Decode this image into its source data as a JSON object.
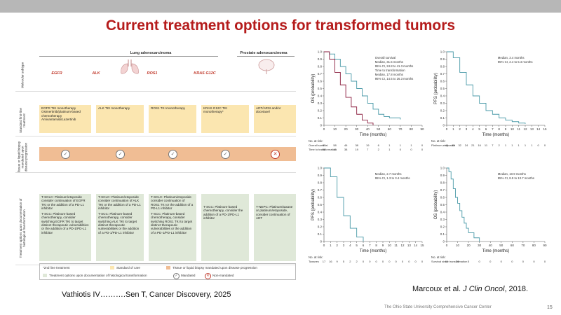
{
  "title": "Current treatment options for transformed tumors",
  "left_figure": {
    "header_lung": "Lung adenocarcinoma",
    "header_prostate": "Prostate adenocarcinoma",
    "row_labels": [
      "Molecular subtype",
      "Standard first-line treatment",
      "Tissue or liquid biopsy mandated upon disease progression",
      "Treatment options upon documentation of histological transformation"
    ],
    "columns": [
      {
        "gene": "EGFR",
        "first_line": [
          "EGFR TKI monotherapy",
          "Osimertinib/platinum-based chemotherapy",
          "Amivantamab/Lazertinib"
        ],
        "transformed": [
          "T-SCLC: Platinum/etoposide consider continuation of EGFR TKI or the addition of a PD-L1 inhibitor",
          "T-SCC: Platinum-based chemotherapy, consider switching EGFR TKI to target distinct therapeutic vulnerabilities or the addition of a PD-1/PD-L1 inhibitor"
        ],
        "mark": "✓"
      },
      {
        "gene": "ALK",
        "first_line": [
          "ALK TKI monotherapy"
        ],
        "transformed": [
          "T-SCLC: Platinum/etoposide consider continuation of ALK TKI or the addition of a PD-L1 inhibitor",
          "T-SCC: Platinum-based chemotherapy, consider switching ALK TKI to target distinct therapeutic vulnerabilities or the addition of a PD-1/PD-L1 inhibitor"
        ],
        "mark": "✓"
      },
      {
        "gene": "ROS1",
        "first_line": [
          "ROS1 TKI monotherapy"
        ],
        "transformed": [
          "T-SCLC: Platinum/etoposide consider continuation of ROS1 TKI or the addition of a PD-L1 inhibitor",
          "T-SCC: Platinum-based chemotherapy, consider switching ROS1 TKI to target distinct therapeutic vulnerabilities or the addition of a PD-1/PD-L1 inhibitor"
        ],
        "mark": "✓"
      },
      {
        "gene": "KRAS G12C",
        "first_line": [
          "KRAS G12C TKI monotherapy*"
        ],
        "transformed": [
          "T-SCC: Platinum-based chemotherapy, consider the addition of a PD-1/PD-L1 inhibitor"
        ],
        "mark": "✓"
      },
      {
        "gene": "",
        "first_line": [
          "ADT/ARSI and/or docetaxel"
        ],
        "transformed": [
          "T-NEPC: Platinum/taxane or platinum/etoposide, consider continuation of ADT"
        ],
        "mark": "✕"
      }
    ],
    "legend": {
      "second_line": "*2nd line treatment",
      "standard": "Standard of care",
      "biopsy": "Tissue or liquid biopsy mandated upon disease progression",
      "treatment": "Treatment options upon documentation of histological transformation",
      "mandated": "Mandated",
      "non_mandated": "Non-mandated"
    },
    "colors": {
      "standard": "#fbe6b0",
      "biopsy": "#f0bd94",
      "treatment": "#dfe8d8",
      "accent": "#c0392b"
    }
  },
  "citation_left": "Vathiotis IV……….Sen T, Cancer Discovery, 2025",
  "citation_right_prefix": "Marcoux et al. ",
  "citation_right_journal": "J Clin Oncol",
  "citation_right_suffix": ", 2018.",
  "footer": "The Ohio State University Comprehensive Cancer Center",
  "page_number": "15",
  "chart_data": [
    {
      "type": "line",
      "ylabel": "OS (probability)",
      "xlabel": "Time (months)",
      "xlim": [
        0,
        90
      ],
      "ylim": [
        0,
        1.0
      ],
      "xticks": [
        0,
        10,
        20,
        30,
        40,
        50,
        60,
        70,
        80,
        90
      ],
      "yticks": [
        "0",
        "0.1",
        "0.2",
        "0.3",
        "0.4",
        "0.5",
        "0.6",
        "0.7",
        "0.8",
        "0.9",
        "1.0"
      ],
      "annotations": [
        "Overall survival",
        "Median, 31.5 months",
        "95% CI, 24.8 to 41.3 months",
        "Time to transformation",
        "Median, 17.8 months",
        "95% CI, 14.5 to 26.3 months"
      ],
      "series": [
        {
          "name": "Overall survival",
          "color": "#4a9aa8",
          "x": [
            0,
            5,
            10,
            15,
            20,
            25,
            30,
            35,
            40,
            45,
            50,
            55,
            60,
            70
          ],
          "y": [
            1.0,
            0.97,
            0.9,
            0.8,
            0.7,
            0.6,
            0.5,
            0.4,
            0.3,
            0.22,
            0.15,
            0.12,
            0.1,
            0.08
          ]
        },
        {
          "name": "Time to transformation",
          "color": "#8b1e3f",
          "x": [
            0,
            5,
            10,
            15,
            20,
            25,
            30,
            35,
            40,
            45
          ],
          "y": [
            1.0,
            0.9,
            0.72,
            0.55,
            0.38,
            0.25,
            0.15,
            0.07,
            0.03,
            0.0
          ]
        }
      ],
      "risk_label": "No. at risk:",
      "risk_rows": [
        {
          "label": "Overall survival",
          "values": [
            "67",
            "58",
            "46",
            "38",
            "19",
            "6",
            "1",
            "1",
            "1",
            "0"
          ]
        },
        {
          "label": "Time to transformation",
          "values": [
            "58",
            "46",
            "38",
            "19",
            "7",
            "2",
            "1",
            "0",
            "0",
            "0"
          ]
        }
      ]
    },
    {
      "type": "line",
      "ylabel": "PFS (probability)",
      "xlabel": "Time (months)",
      "xlim": [
        0,
        15
      ],
      "ylim": [
        0,
        1.0
      ],
      "xticks": [
        0,
        1,
        2,
        3,
        4,
        5,
        6,
        7,
        8,
        9,
        10,
        11,
        12,
        13,
        14,
        15
      ],
      "yticks": [
        "0",
        "0.1",
        "0.2",
        "0.3",
        "0.4",
        "0.5",
        "0.6",
        "0.7",
        "0.8",
        "0.9",
        "1.0"
      ],
      "annotations": [
        "Median, 3.4 months",
        "95% CI, 2.4 to 5.4 months"
      ],
      "series": [
        {
          "color": "#4a9aa8",
          "x": [
            0,
            1,
            2,
            3,
            4,
            5,
            6,
            7,
            8,
            9,
            10,
            11,
            12
          ],
          "y": [
            1.0,
            0.92,
            0.72,
            0.55,
            0.4,
            0.3,
            0.2,
            0.15,
            0.1,
            0.07,
            0.05,
            0.03,
            0.02
          ]
        }
      ],
      "risk_label": "No. at risk:",
      "risk_rows": [
        {
          "label": "Platinum-etoposide",
          "values": [
            "46",
            "43",
            "32",
            "24",
            "21",
            "16",
            "11",
            "7",
            "2",
            "1",
            "1",
            "1",
            "1",
            "1",
            "0",
            "0"
          ]
        }
      ]
    },
    {
      "type": "line",
      "ylabel": "PFS (probability)",
      "xlabel": "Time (months)",
      "xlim": [
        0,
        15
      ],
      "ylim": [
        0,
        1.0
      ],
      "xticks": [
        0,
        1,
        2,
        3,
        4,
        5,
        6,
        7,
        8,
        9,
        10,
        11,
        12,
        13,
        14,
        15
      ],
      "yticks": [
        "0",
        "0.1",
        "0.2",
        "0.3",
        "0.4",
        "0.5",
        "0.6",
        "0.7",
        "0.8",
        "0.9",
        "1.0"
      ],
      "annotations": [
        "Median, 2.7 months",
        "95% CI, 1.3 to 3.4 months"
      ],
      "series": [
        {
          "color": "#4a9aa8",
          "x": [
            0,
            1,
            2,
            3,
            4,
            5,
            6
          ],
          "y": [
            1.0,
            0.88,
            0.6,
            0.35,
            0.18,
            0.06,
            0.0
          ]
        }
      ],
      "risk_label": "No. at risk:",
      "risk_rows": [
        {
          "label": "Taxanes",
          "values": [
            "17",
            "16",
            "9",
            "5",
            "2",
            "2",
            "0",
            "0",
            "0",
            "0",
            "0",
            "0",
            "0",
            "0",
            "0",
            "0"
          ]
        }
      ]
    },
    {
      "type": "line",
      "ylabel": "OS (probability)",
      "xlabel": "Time (months)",
      "xlim": [
        0,
        90
      ],
      "ylim": [
        0,
        1.0
      ],
      "xticks": [
        0,
        10,
        20,
        30,
        40,
        50,
        60,
        70,
        80,
        90
      ],
      "yticks": [
        "0",
        "0.1",
        "0.2",
        "0.3",
        "0.4",
        "0.5",
        "0.6",
        "0.7",
        "0.8",
        "0.9",
        "1.0"
      ],
      "annotations": [
        "Median, 10.9 months",
        "95% CI, 8.9 to 13.7 months"
      ],
      "series": [
        {
          "color": "#4a9aa8",
          "x": [
            0,
            2,
            4,
            6,
            8,
            10,
            12,
            14,
            16,
            18,
            20,
            25,
            30
          ],
          "y": [
            1.0,
            0.95,
            0.85,
            0.72,
            0.6,
            0.52,
            0.42,
            0.33,
            0.25,
            0.18,
            0.12,
            0.05,
            0.0
          ]
        }
      ],
      "risk_label": "No. at risk:",
      "risk_rows": [
        {
          "label": "Survival since transformation",
          "values": [
            "61",
            "26",
            "5",
            "0",
            "0",
            "0",
            "0",
            "0",
            "0",
            "0"
          ]
        }
      ]
    }
  ]
}
